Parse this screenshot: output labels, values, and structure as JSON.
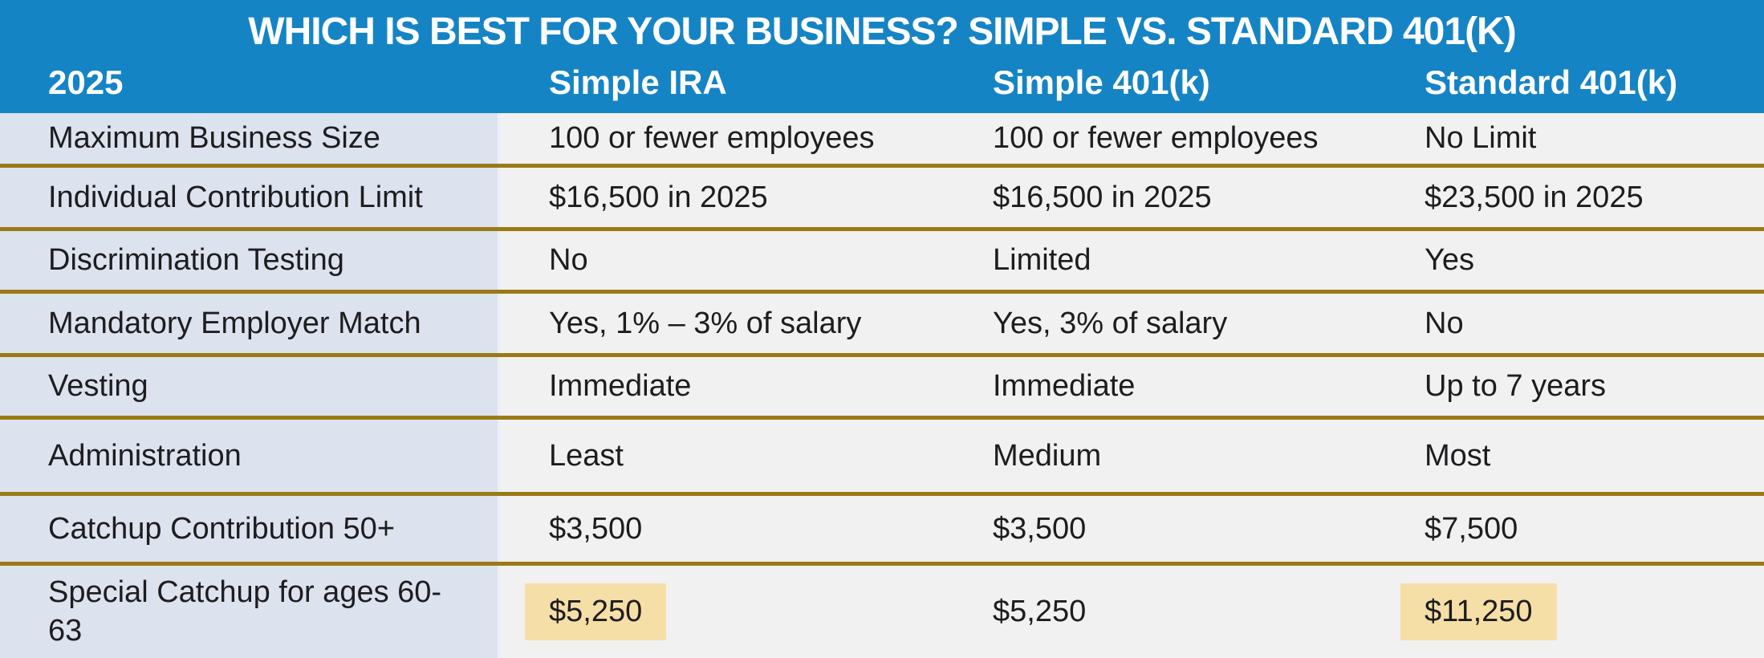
{
  "table": {
    "title": "WHICH IS BEST FOR YOUR BUSINESS? SIMPLE VS. STANDARD 401(K)",
    "columns": [
      "2025",
      "Simple IRA",
      "Simple 401(k)",
      "Standard 401(k)"
    ],
    "rows": [
      {
        "cells": [
          "Maximum Business Size",
          "100 or fewer employees",
          "100 or fewer employees",
          "No Limit"
        ]
      },
      {
        "cells": [
          "Individual Contribution Limit",
          "$16,500 in 2025",
          "$16,500 in 2025",
          "$23,500 in 2025"
        ]
      },
      {
        "cells": [
          "Discrimination Testing",
          "No",
          "Limited",
          "Yes"
        ]
      },
      {
        "cells": [
          "Mandatory Employer Match",
          "Yes, 1% – 3% of salary",
          "Yes, 3% of salary",
          "No"
        ]
      },
      {
        "cells": [
          "Vesting",
          "Immediate",
          "Immediate",
          "Up to 7 years"
        ]
      },
      {
        "cells": [
          "Administration",
          "Least",
          "Medium",
          "Most"
        ]
      },
      {
        "cells": [
          "Catchup Contribution 50+",
          "$3,500",
          "$3,500",
          "$7,500"
        ]
      },
      {
        "cells": [
          "Special Catchup for ages 60-63",
          "$5,250",
          "$5,250",
          "$11,250"
        ],
        "highlighted_columns": [
          "Simple IRA",
          "Standard 401(k)"
        ]
      }
    ]
  },
  "colors": {
    "header_blue": "#1584c5",
    "label_column_lavender": "#dde2ef",
    "data_cell_gray": "#f1f1f2",
    "row_separator_gold": "#9a7a15",
    "highlight_tan": "#f6dfa7",
    "header_text": "#ffffff",
    "body_text": "#1d1d1f"
  }
}
